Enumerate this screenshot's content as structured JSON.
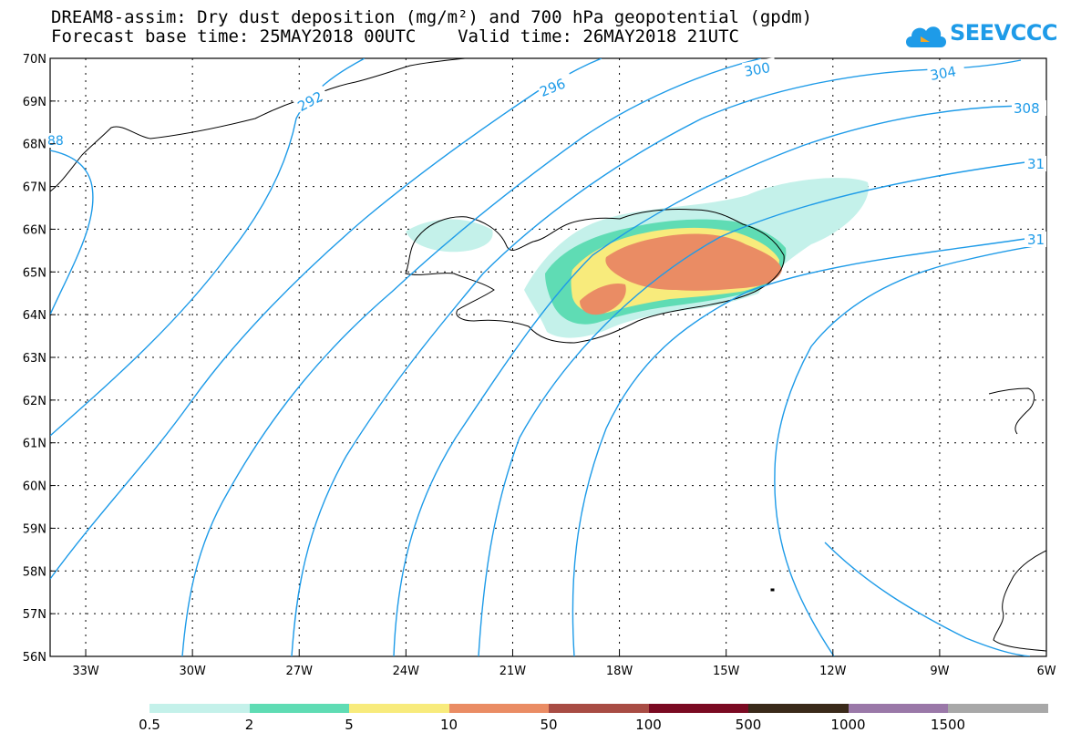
{
  "header": {
    "title_line1": "DREAM8-assim: Dry dust deposition (mg/m²) and 700 hPa geopotential (gpdm)",
    "title_line2": "Forecast base time: 25MAY2018 00UTC    Valid time: 26MAY2018 21UTC",
    "logo_text": "SEEVCCC",
    "logo_icon": "cloud-icon"
  },
  "map": {
    "lon_range": [
      -34,
      -6
    ],
    "lat_range": [
      56,
      70
    ],
    "lon_ticks": [
      "33W",
      "30W",
      "27W",
      "24W",
      "21W",
      "18W",
      "15W",
      "12W",
      "9W",
      "6W"
    ],
    "lat_ticks": [
      "70N",
      "69N",
      "68N",
      "67N",
      "66N",
      "65N",
      "64N",
      "63N",
      "62N",
      "61N",
      "60N",
      "59N",
      "58N",
      "57N",
      "56N"
    ],
    "contour_color": "#1e9be8",
    "contour_labels": [
      "88",
      "292",
      "296",
      "300",
      "304",
      "308",
      "31",
      "31"
    ]
  },
  "legend": {
    "labels": [
      "0.5",
      "2",
      "5",
      "10",
      "50",
      "100",
      "500",
      "1000",
      "1500"
    ],
    "colors": [
      "#c4f1ea",
      "#5fdcb4",
      "#f8eb7c",
      "#ea8c64",
      "#a84c44",
      "#7a0a22",
      "#3a2a1a",
      "#9a78a8",
      "#a8a8a8"
    ]
  }
}
